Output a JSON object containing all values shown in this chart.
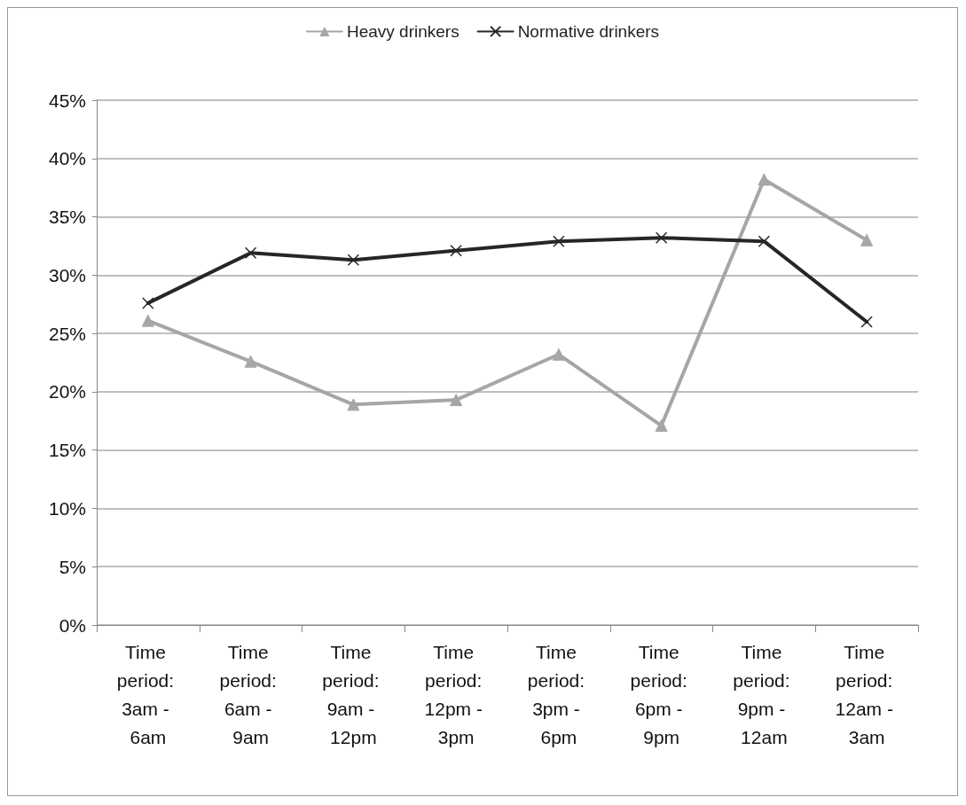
{
  "chart_data": {
    "type": "line",
    "categories": [
      "Time period: 3am - 6am",
      "Time period: 6am - 9am",
      "Time period: 9am - 12pm",
      "Time period: 12pm - 3pm",
      "Time period: 3pm - 6pm",
      "Time period: 6pm - 9pm",
      "Time period: 9pm - 12am",
      "Time period: 12am - 3am"
    ],
    "series": [
      {
        "name": "Heavy drinkers",
        "color": "#a6a6a6",
        "marker": "triangle",
        "values": [
          26.1,
          22.6,
          18.9,
          19.3,
          23.2,
          17.1,
          38.2,
          33.0
        ]
      },
      {
        "name": "Normative drinkers",
        "color": "#262626",
        "marker": "cross",
        "values": [
          27.6,
          31.9,
          31.3,
          32.1,
          32.9,
          33.2,
          32.9,
          26.0
        ]
      }
    ],
    "ylim": [
      0,
      45
    ],
    "yticks": [
      {
        "value": 0,
        "label": "0%"
      },
      {
        "value": 5,
        "label": "5%"
      },
      {
        "value": 10,
        "label": "10%"
      },
      {
        "value": 15,
        "label": "15%"
      },
      {
        "value": 20,
        "label": "20%"
      },
      {
        "value": 25,
        "label": "25%"
      },
      {
        "value": 30,
        "label": "30%"
      },
      {
        "value": 35,
        "label": "35%"
      },
      {
        "value": 40,
        "label": "40%"
      },
      {
        "value": 45,
        "label": "45%"
      }
    ],
    "grid": "y",
    "legend": "top",
    "line_style": "solid"
  }
}
